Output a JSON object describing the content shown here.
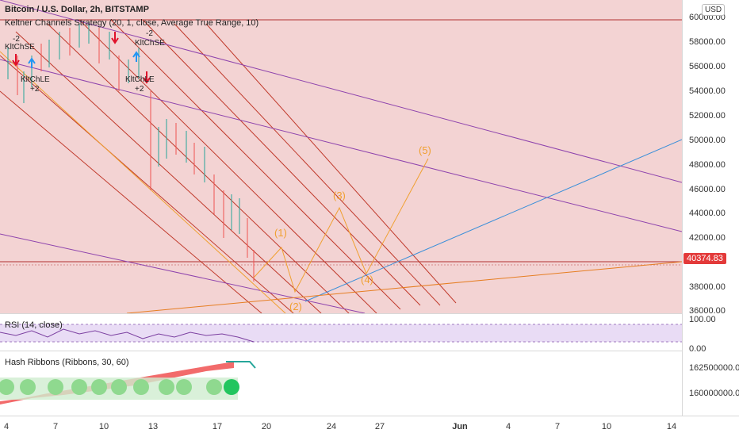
{
  "header": {
    "symbol_line": "Bitcoin / U.S. Dollar, 2h, BITSTAMP",
    "strategy_line": "Keltner Channels Strategy (20, 1, close, Average True Range, 10)",
    "currency": "USD"
  },
  "price_axis": {
    "ticks": [
      "60000.00",
      "58000.00",
      "56000.00",
      "54000.00",
      "52000.00",
      "50000.00",
      "48000.00",
      "46000.00",
      "44000.00",
      "42000.00",
      "38000.00",
      "36000.00"
    ],
    "current_price": "40374.83"
  },
  "rsi": {
    "label": "RSI (14, close)",
    "ticks": [
      "100.00",
      "0.00"
    ]
  },
  "hash_ribbons": {
    "label": "Hash Ribbons (Ribbons, 30, 60)",
    "ticks": [
      "162500000.00",
      "160000000.00"
    ]
  },
  "time_axis": {
    "labels": [
      "4",
      "7",
      "10",
      "13",
      "17",
      "20",
      "24",
      "27",
      "Jun",
      "4",
      "7",
      "10",
      "14"
    ]
  },
  "annotations": {
    "waves": [
      "(1)",
      "(2)",
      "(3)",
      "(4)",
      "(5)"
    ],
    "signals": {
      "short_a": "KltChSE",
      "short_b": "KltChSE",
      "long_a": "KltChLE",
      "long_b": "KltChLE",
      "qty_minus_a": "-2",
      "qty_minus_b": "-2",
      "qty_plus_a": "+2",
      "qty_plus_b": "+2"
    }
  },
  "colors": {
    "background": "#f3d3d3",
    "channel_lines": "#c0392b",
    "purple_lines": "#8e44ad",
    "blue_line": "#3a8fd9",
    "orange_line": "#e67e22",
    "wave_color": "#f0a030",
    "ribbon_red": "#f26b6b",
    "ribbon_green": "#8fd98f",
    "price_tag": "#e33a3a"
  }
}
